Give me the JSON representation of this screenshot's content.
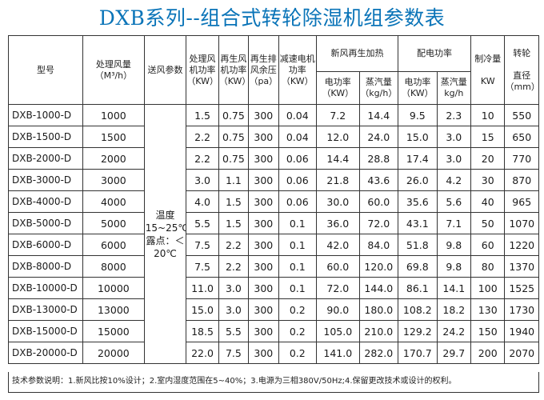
{
  "title": "DXB系列--组合式转轮除湿机组参数表",
  "headers": {
    "model": "型号",
    "airflow": "处理风量",
    "airflow_unit": "（M³/h）",
    "air_params": "送风参数",
    "fan_power": "处理风机功率（KW）",
    "regen_fan_power": "再生风机功率（KW）",
    "regen_pressure": "再生排风余压（pa）",
    "motor_power": "减速电机功率",
    "motor_power_unit": "（KW）",
    "heating_group": "新风再生加热",
    "heat_power": "电功率（KW）",
    "steam": "蒸汽量",
    "steam_unit": "（kg/h）",
    "distrib_group": "配电功率",
    "distrib_power": "电功率（KW）",
    "distrib_steam": "蒸汽量",
    "distrib_steam_unit": "kg/h",
    "cooling": "制冷量",
    "cooling_unit": "KW",
    "rotor": "转轮",
    "rotor_sub": "直径",
    "rotor_unit": "（mm）"
  },
  "supply_condition": "温度15~25℃，露点：＜20℃",
  "rows": [
    [
      "DXB-1000-D",
      "1000",
      "1.5",
      "0.75",
      "300",
      "0.04",
      "7.2",
      "14.4",
      "9.5",
      "2.3",
      "10",
      "550"
    ],
    [
      "DXB-1500-D",
      "1500",
      "2.2",
      "0.75",
      "300",
      "0.04",
      "12.0",
      "24.0",
      "15.0",
      "3.0",
      "15",
      "650"
    ],
    [
      "DXB-2000-D",
      "2000",
      "2.2",
      "0.75",
      "300",
      "0.06",
      "14.4",
      "28.8",
      "17.4",
      "3.0",
      "20",
      "770"
    ],
    [
      "DXB-3000-D",
      "3000",
      "3.0",
      "1.1",
      "300",
      "0.06",
      "21.8",
      "43.6",
      "26.0",
      "4.2",
      "30",
      "870"
    ],
    [
      "DXB-4000-D",
      "4000",
      "4.0",
      "1.5",
      "300",
      "0.06",
      "30.0",
      "60.0",
      "35.6",
      "5.6",
      "40",
      "965"
    ],
    [
      "DXB-5000-D",
      "5000",
      "5.5",
      "1.5",
      "300",
      "0.1",
      "36.0",
      "72.0",
      "43.1",
      "7.1",
      "50",
      "1070"
    ],
    [
      "DXB-6000-D",
      "6000",
      "7.5",
      "2.2",
      "300",
      "0.1",
      "42.0",
      "84.0",
      "51.8",
      "9.8",
      "60",
      "1220"
    ],
    [
      "DXB-8000-D",
      "8000",
      "7.5",
      "2.2",
      "300",
      "0.1",
      "60.0",
      "120.0",
      "69.8",
      "9.8",
      "80",
      "1370"
    ],
    [
      "DXB-10000-D",
      "10000",
      "11.0",
      "3.0",
      "300",
      "0.1",
      "72.0",
      "144.0",
      "86.1",
      "14.1",
      "100",
      "1525"
    ],
    [
      "DXB-13000-D",
      "13000",
      "15.0",
      "3.0",
      "300",
      "0.2",
      "90.0",
      "180.0",
      "108.2",
      "18.2",
      "130",
      "1730"
    ],
    [
      "DXB-15000-D",
      "15000",
      "18.5",
      "5.5",
      "300",
      "0.2",
      "105.0",
      "210.0",
      "129.2",
      "24.2",
      "150",
      "1940"
    ],
    [
      "DXB-20000-D",
      "20000",
      "22.0",
      "7.5",
      "300",
      "0.2",
      "141.0",
      "282.0",
      "170.7",
      "29.7",
      "200",
      "2070"
    ]
  ],
  "footnote": "技术参数说明：1.新风比按10%设计；2.室内湿度范围在5~40%；3.电源为三相380V/50Hz;4.保留更改技术或设计的权利。"
}
